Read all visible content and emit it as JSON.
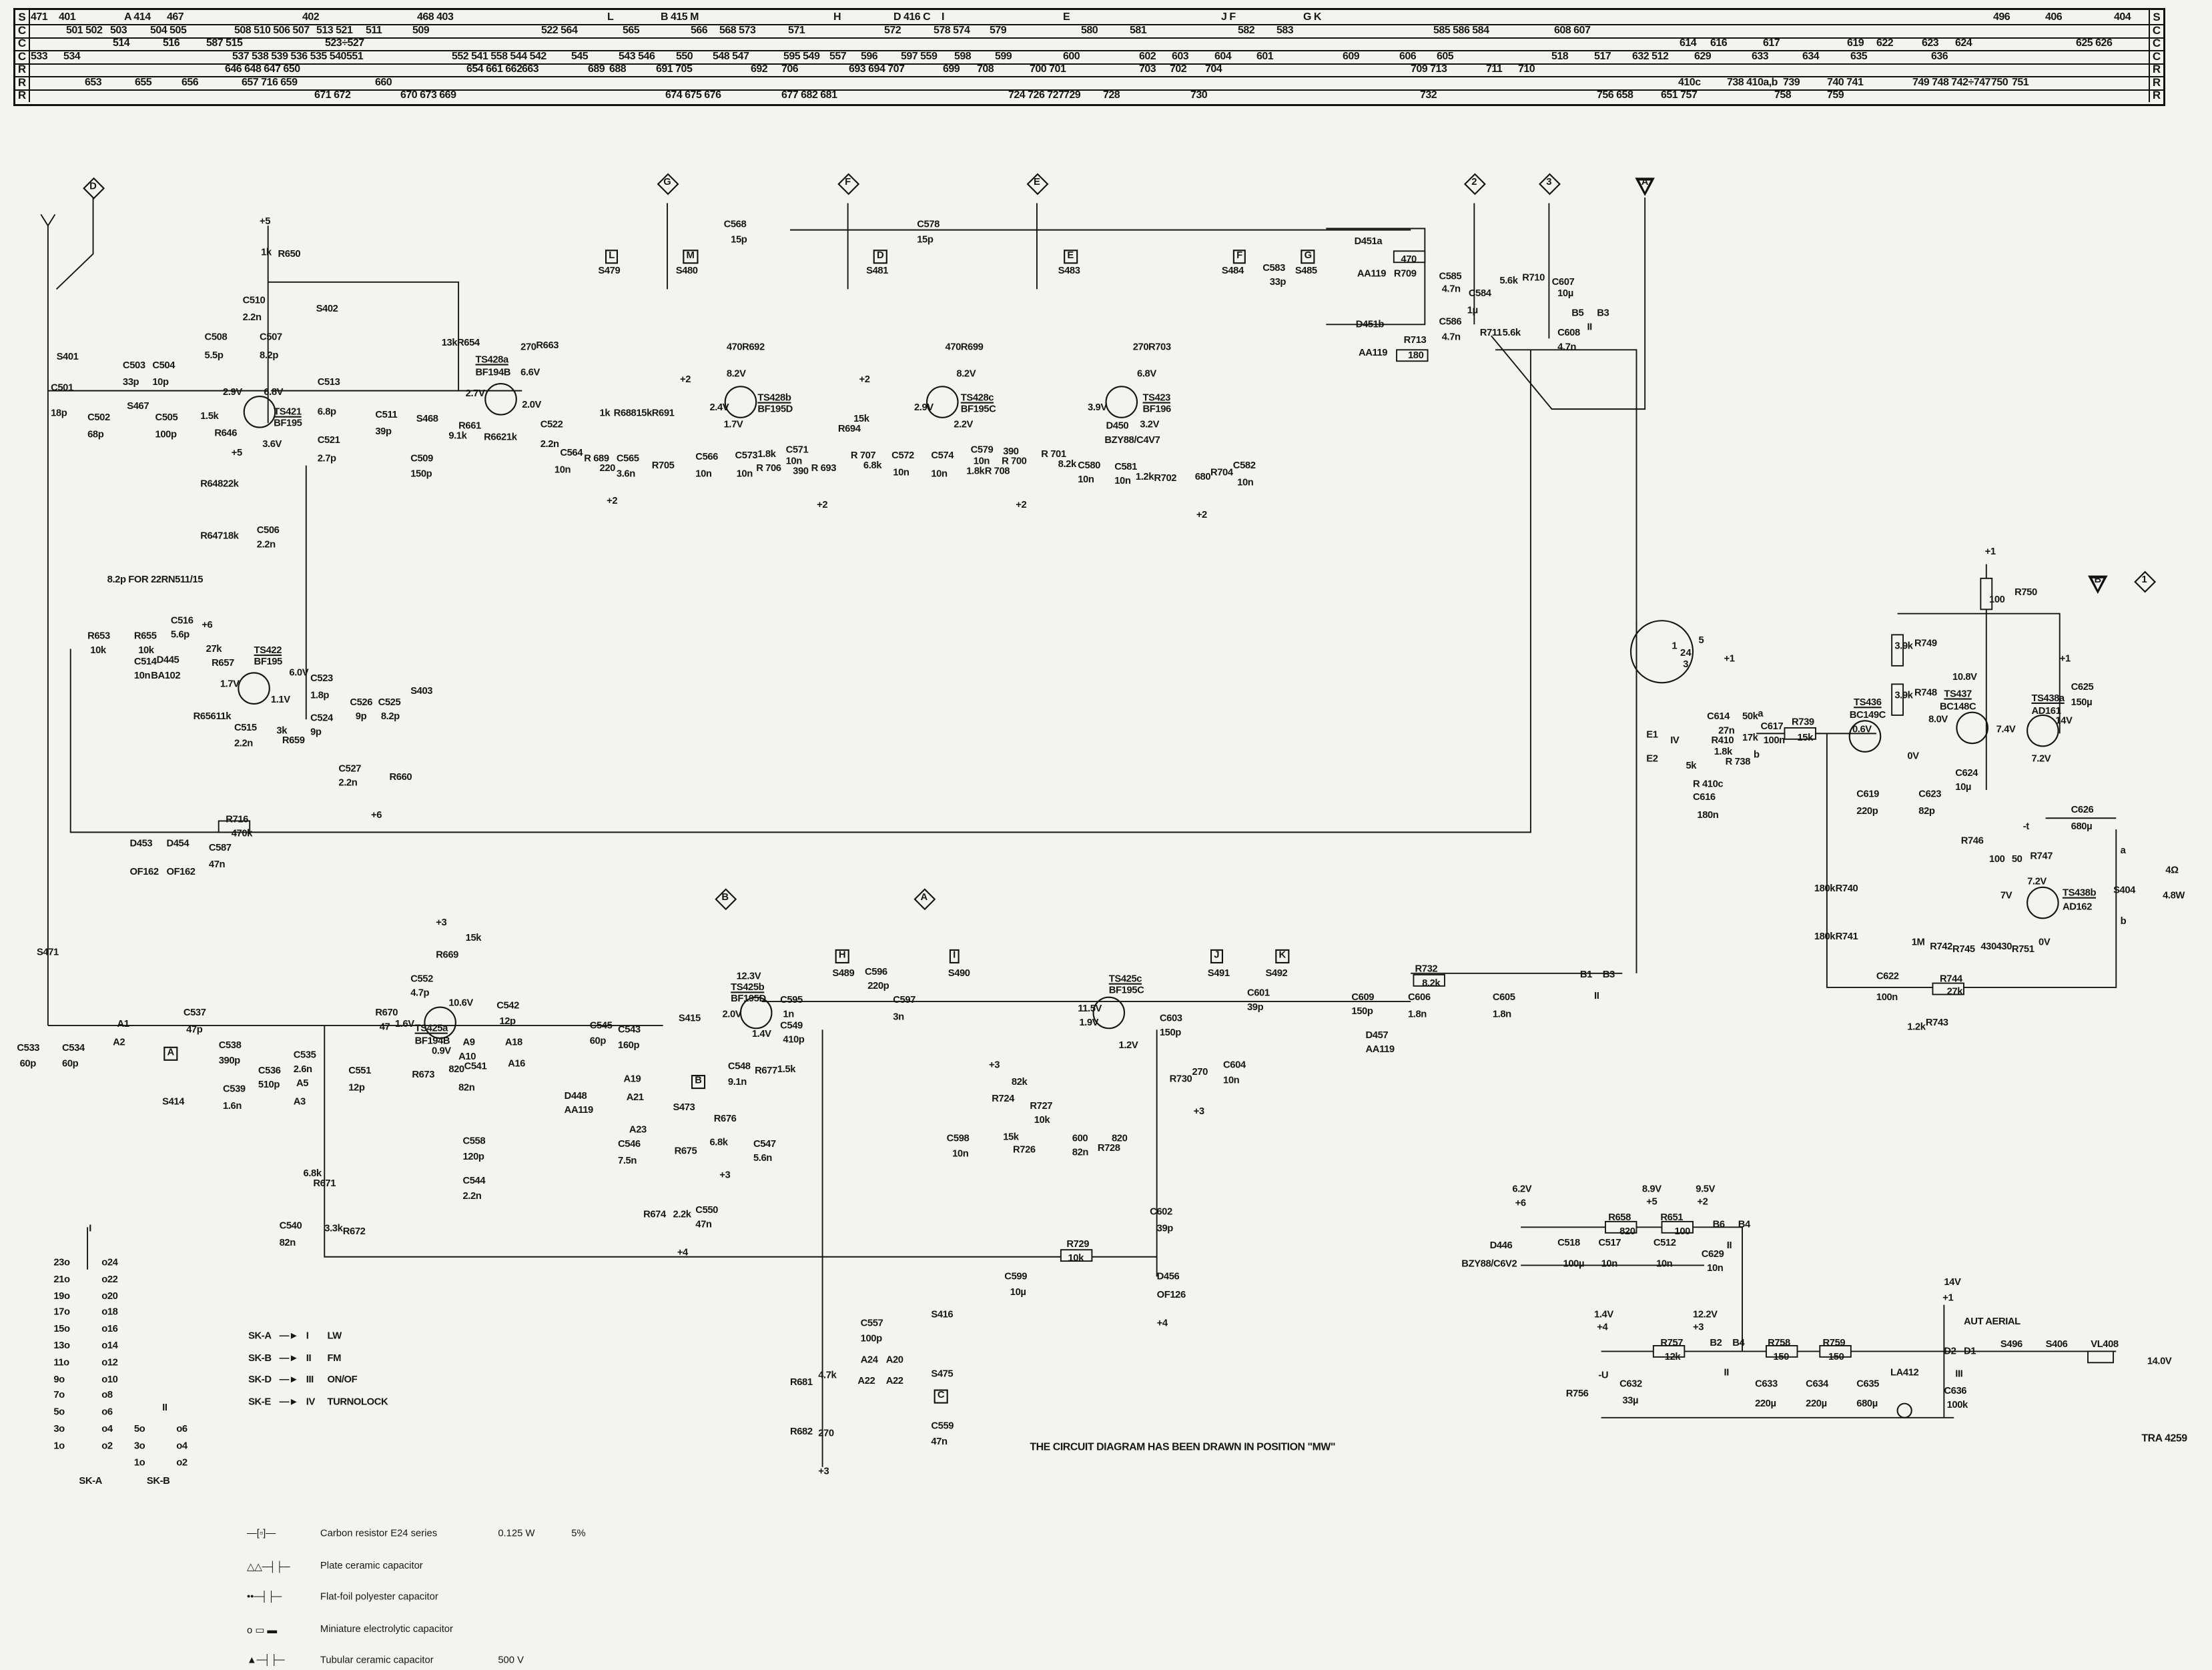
{
  "parts_table": {
    "rows": [
      {
        "type": "S",
        "entries": [
          "471",
          "401",
          "A 414",
          "467",
          "402",
          "468 403",
          "L",
          "B 415 M",
          "H",
          "D 416 C",
          "I",
          "E",
          "J F",
          "G K",
          "496",
          "406",
          "404"
        ]
      },
      {
        "type": "C",
        "entries": [
          "501 502",
          "503",
          "504 505",
          "508 510 506 507",
          "513 521",
          "511",
          "509",
          "522 564",
          "565",
          "566",
          "568 573",
          "571",
          "572",
          "578 574",
          "579",
          "580",
          "581",
          "582",
          "583",
          "585 586 584",
          "608 607"
        ]
      },
      {
        "type": "C",
        "entries": [
          "514",
          "516",
          "587 515",
          "523÷527",
          "614",
          "616",
          "617",
          "619",
          "622",
          "623",
          "624",
          "625 626"
        ]
      },
      {
        "type": "C",
        "entries": [
          "533",
          "534",
          "537 538 539 536 535 540",
          "551",
          "552 541 558 544 542",
          "545",
          "543 546",
          "550",
          "548 547",
          "595 549",
          "557",
          "596",
          "597 559",
          "598",
          "599",
          "600",
          "602",
          "603",
          "604",
          "601",
          "609",
          "606",
          "605",
          "518",
          "517",
          "632 512",
          "629",
          "633",
          "634",
          "635",
          "636"
        ]
      },
      {
        "type": "R",
        "entries": [
          "646 648 647 650",
          "654 661 662",
          "663",
          "689",
          "688",
          "691 705",
          "692",
          "706",
          "693 694 707",
          "699",
          "708",
          "700 701",
          "703",
          "702",
          "704",
          "709 713",
          "711",
          "710"
        ]
      },
      {
        "type": "R",
        "entries": [
          "653",
          "655",
          "656",
          "657 716 659",
          "660",
          "410c",
          "738 410a,b",
          "739",
          "740 741",
          "749 748 742÷747",
          "750",
          "751"
        ]
      },
      {
        "type": "R",
        "entries": [
          "671 672",
          "670 673 669",
          "674 675 676",
          "677 682 681",
          "724 726 727",
          "729",
          "728",
          "730",
          "732",
          "756 658",
          "651 757",
          "758",
          "759"
        ]
      }
    ]
  },
  "flags": {
    "D": "D",
    "G": "G",
    "F": "F",
    "E": "E",
    "n2": "2",
    "n3": "3",
    "A": "A",
    "B": "B",
    "n1": "1",
    "B2": "B",
    "A2": "A"
  },
  "boxes": {
    "L": "L",
    "M": "M",
    "D": "D",
    "E": "E",
    "F": "F",
    "G": "G",
    "H": "H",
    "I": "I",
    "J": "J",
    "K": "K",
    "A": "A",
    "B": "B",
    "C": "C"
  },
  "labels": {
    "p5a": "+5",
    "r650": "R650",
    "r650v": "1k",
    "c510": "C510",
    "c510v": "2.2n",
    "s402": "S402",
    "c508": "C508",
    "c508v": "5.5p",
    "c507": "C507",
    "c507v": "8.2p",
    "s401": "S401",
    "c503": "C503",
    "c503v": "33p",
    "c504": "C504",
    "c504v": "10p",
    "c501": "C501",
    "c501v": "18p",
    "c502": "C502",
    "c502v": "68p",
    "s467": "S467",
    "c505": "C505",
    "c505v": "100p",
    "r646": "R646",
    "r646v": "1.5k",
    "ts421": "TS421",
    "ts421t": "BF195",
    "v29": "2.9V",
    "v68": "6.8V",
    "v36": "3.6V",
    "p5b": "+5",
    "r648": "R648",
    "r648v": "22k",
    "r647": "R647",
    "r647v": "18k",
    "c506": "C506",
    "c506v": "2.2n",
    "c513": "C513",
    "c513v": "6.8p",
    "c521": "C521",
    "c521v": "2.7p",
    "c511": "C511",
    "c511v": "39p",
    "s468": "S468",
    "c509": "C509",
    "c509v": "150p",
    "r654": "R654",
    "r654v": "13k",
    "r661": "R661",
    "r661v": "9.1k",
    "r663": "R663",
    "r663v": "270",
    "ts428a": "TS428a",
    "ts428at": "BF194B",
    "v27": "2.7V",
    "v66": "6.6V",
    "v20": "2.0V",
    "r662": "R662",
    "r662v": "1k",
    "c522": "C522",
    "c522v": "2.2n",
    "s479": "S479",
    "s480": "S480",
    "r688": "R688",
    "r688v": "1k",
    "r689": "R 689",
    "r689v": "220",
    "c564": "C564",
    "c564v": "10n",
    "c565": "C565",
    "c565v": "3.6n",
    "r705": "R705",
    "r691": "R691",
    "r691v": "15k",
    "c566": "C566",
    "c566v": "10n",
    "c568": "C568",
    "c568v": "15p",
    "ts428b": "TS428b",
    "ts428bt": "BF195D",
    "r692": "R692",
    "r692v": "470",
    "v82a": "8.2V",
    "v24": "2.4V",
    "v17": "1.7V",
    "c573": "C573",
    "c573v": "10n",
    "r706": "R 706",
    "r706v": "1.8k",
    "c571": "C571",
    "c571v": "10n",
    "r693": "R 693",
    "r693v": "390",
    "s481": "S481",
    "r694": "R694",
    "r694v": "15k",
    "r707": "R 707",
    "r707v": "6.8k",
    "c572": "C572",
    "c572v": "10n",
    "c578": "C578",
    "c578v": "15p",
    "ts428c": "TS428c",
    "ts428ct": "BF195C",
    "r699": "R699",
    "r699v": "470",
    "v82b": "8.2V",
    "v29b": "2.9V",
    "v22": "2.2V",
    "c574": "C574",
    "c574v": "10n",
    "c579": "C579",
    "c579v": "10n",
    "r708": "R 708",
    "r708v": "1.8k",
    "r700": "R 700",
    "r700v": "390",
    "s483": "S483",
    "r701": "R 701",
    "r701v": "8.2k",
    "c580": "C580",
    "c580v": "10n",
    "ts423": "TS423",
    "ts423t": "BF196",
    "r703": "R703",
    "r703v": "270",
    "v68b": "6.8V",
    "v39": "3.9V",
    "v32": "3.2V",
    "d450": "D450",
    "d450t": "BZY88/C4V7",
    "c581": "C581",
    "c581v": "10n",
    "r702": "R702",
    "r702v": "1.2k",
    "r704": "R704",
    "r704v": "680",
    "c582": "C582",
    "c582v": "10n",
    "s484": "S484",
    "c583": "C583",
    "c583v": "33p",
    "s485": "S485",
    "d451a": "D451a",
    "d451at": "AA119",
    "r709": "R709",
    "r709v": "470",
    "c585": "C585",
    "c585v": "4.7n",
    "c584": "C584",
    "c584v": "1µ",
    "r710": "R710",
    "r710v": "5.6k",
    "c586": "C586",
    "c586v": "4.7n",
    "r711": "R711",
    "r711v": "5.6k",
    "d451b": "D451b",
    "d451bt": "AA119",
    "r713": "R713",
    "r713v": "180",
    "c607": "C607",
    "c607v": "10µ",
    "c608": "C608",
    "c608v": "4.7n",
    "b5": "B5",
    "b3": "B3",
    "sw2a": "II",
    "note82": "8.2p FOR 22RN511/15",
    "r653": "R653",
    "r653v": "10k",
    "r655": "R655",
    "r655v": "10k",
    "c516": "C516",
    "c516v": "5.6p",
    "p6a": "+6",
    "c514": "C514",
    "c514v": "10n",
    "d445": "D445",
    "d445t": "BA102",
    "r657": "R657",
    "r657v": "27k",
    "ts422": "TS422",
    "ts422t": "BF195",
    "v17b": "1.7V",
    "v60": "6.0V",
    "v11": "1.1V",
    "c523": "C523",
    "c523v": "1.8p",
    "c524": "C524",
    "c524v": "9p",
    "c526": "C526",
    "c526v": "9p",
    "c525": "C525",
    "c525v": "8.2p",
    "s403": "S403",
    "r656": "R656",
    "r656v": "11k",
    "c515": "C515",
    "c515v": "2.2n",
    "r659": "R659",
    "r659v": "3k",
    "c527": "C527",
    "c527v": "2.2n",
    "r660": "R660",
    "p6b": "+6",
    "r716": "R716",
    "r716v": "470k",
    "d453": "D453",
    "d453t": "OF162",
    "d454": "D454",
    "d454t": "OF162",
    "c587": "C587",
    "c587v": "47n",
    "s471": "S471",
    "c533": "C533",
    "c533v": "60p",
    "c534": "C534",
    "c534v": "60p",
    "a1": "A1",
    "a2": "A2",
    "s414": "S414",
    "c537": "C537",
    "c537v": "47p",
    "c538": "C538",
    "c538v": "390p",
    "c539": "C539",
    "c539v": "1.6n",
    "c536": "C536",
    "c536v": "510p",
    "c535": "C535",
    "c535v": "2.6n",
    "a5": "A5",
    "a3": "A3",
    "c551": "C551",
    "c551v": "12p",
    "r670": "R670",
    "r670v": "47",
    "ts425a": "TS425a",
    "ts425at": "BF194B",
    "v16": "1.6V",
    "v106": "10.6V",
    "v09": "0.9V",
    "r669": "R669",
    "r669v": "15k",
    "p3a": "+3",
    "c552": "C552",
    "c552v": "4.7p",
    "r673": "R673",
    "r673v": "820",
    "c541": "C541",
    "c541v": "82n",
    "c542": "C542",
    "c542v": "12p",
    "a9": "A9",
    "a10": "A10",
    "a16": "A16",
    "a18": "A18",
    "c545": "C545",
    "c545v": "60p",
    "c543": "C543",
    "c543v": "160p",
    "s415": "S415",
    "d448": "D448",
    "d448t": "AA119",
    "a19": "A19",
    "a21": "A21",
    "a23": "A23",
    "s473": "S473",
    "c558": "C558",
    "c558v": "120p",
    "c544": "C544",
    "c544v": "2.2n",
    "c546": "C546",
    "c546v": "7.5n",
    "r675": "R675",
    "r676": "R676",
    "r676v": "6.8k",
    "c547": "C547",
    "c547v": "5.6n",
    "r674": "R674",
    "r674v": "2.2k",
    "c550": "C550",
    "c550v": "47n",
    "p4a": "+4",
    "p3b": "+3",
    "r671": "R671",
    "r671v": "6.8k",
    "r672": "R672",
    "r672v": "3.3k",
    "c540": "C540",
    "c540v": "82n",
    "ts425b": "TS425b",
    "ts425bt": "BF195D",
    "v123": "12.3V",
    "v20b": "2.0V",
    "v14": "1.4V",
    "c548": "C548",
    "c548v": "9.1n",
    "r677": "R677",
    "r677v": "1.5k",
    "c595": "C595",
    "c595v": "1n",
    "c549": "C549",
    "c549v": "410p",
    "s489": "S489",
    "c596": "C596",
    "c596v": "220p",
    "c597": "C597",
    "c597v": "3n",
    "s490": "S490",
    "ts425c": "TS425c",
    "ts425ct": "BF195C",
    "v115": "11.5V",
    "v19": "1.9V",
    "v12": "1.2V",
    "p3c": "+3",
    "r724": "R724",
    "r724v": "82k",
    "c598": "C598",
    "c598v": "10n",
    "r727": "R727",
    "r727v": "10k",
    "r726": "R726",
    "r726v": "15k",
    "c600": "600",
    "c600v": "82n",
    "r728": "R728",
    "r728v": "820",
    "c602": "C602",
    "c602v": "39p",
    "r729": "R729",
    "r729v": "10k",
    "c599": "C599",
    "c599v": "10µ",
    "d456": "D456",
    "d456t": "OF126",
    "p4b": "+4",
    "s491": "S491",
    "c603": "C603",
    "c603v": "150p",
    "c601": "C601",
    "c601v": "39p",
    "r730": "R730",
    "r730v": "270",
    "c604": "C604",
    "c604v": "10n",
    "p3d": "+3",
    "s492": "S492",
    "c609": "C609",
    "c609v": "150p",
    "d457": "D457",
    "d457t": "AA119",
    "r732": "R732",
    "r732v": "8.2k",
    "c606": "C606",
    "c606v": "1.8n",
    "c605": "C605",
    "c605v": "1.8n",
    "b1": "B1",
    "b3b": "B3",
    "sw2b": "II",
    "c557": "C557",
    "c557v": "100p",
    "a24": "A24",
    "a20": "A20",
    "a22": "A22",
    "a22b": "A22",
    "s416": "S416",
    "s475": "S475",
    "r681": "R681",
    "r681v": "4.7k",
    "r682": "R682",
    "r682v": "270",
    "c559": "C559",
    "c559v": "47n",
    "p3e": "+3",
    "p1a": "+1",
    "r750": "R750",
    "r750v": "100",
    "r749": "R749",
    "r749v": "3.9k",
    "r748": "R748",
    "r748v": "3.9k",
    "ts436": "TS436",
    "ts436t": "BC149C",
    "ts437": "TS437",
    "ts437t": "BC148C",
    "ts438a": "TS438a",
    "ts438at": "AD161",
    "v108": "10.8V",
    "v80": "8.0V",
    "v06": "0.6V",
    "v0a": "0V",
    "v74": "7.4V",
    "v14a": "14V",
    "v72a": "7.2V",
    "p1b": "+1",
    "c625": "C625",
    "c625v": "150µ",
    "c624": "C624",
    "c624v": "10µ",
    "c619": "C619",
    "c619v": "220p",
    "c623": "C623",
    "c623v": "82p",
    "c626": "C626",
    "c626v": "680µ",
    "r746": "R746",
    "r746v": "100",
    "r747": "R747",
    "r747v": "50",
    "r747t": "-t",
    "v72b": "7.2V",
    "v7": "7V",
    "ts438b": "TS438b",
    "ts438bt": "AD162",
    "v0b": "0V",
    "r740": "R740",
    "r740v": "180k",
    "r741": "R741",
    "r741v": "180k",
    "r742": "R742",
    "r742v": "1M",
    "r745": "R745",
    "r745v": "430",
    "r751": "R751",
    "r751v": "430",
    "c622": "C622",
    "c622v": "100n",
    "r744": "R744",
    "r744v": "27k",
    "r743": "R743",
    "r743v": "1.2k",
    "s404": "S404",
    "s404a": "a",
    "s404b": "b",
    "spk": "4Ω",
    "spkw": "4.8W",
    "din1": "1",
    "din2": "2",
    "din3": "3",
    "din4": "4",
    "din5": "5",
    "p1c": "+1",
    "e1": "E1",
    "e2": "E2",
    "sw4": "IV",
    "c614": "C614",
    "c614v": "27n",
    "r410": "R410",
    "r410v": "50k",
    "r410v2": "17k",
    "r410a": "a",
    "r410b": "b",
    "c617": "C617",
    "c617v": "100n",
    "r739": "R739",
    "r739v": "15k",
    "r738": "R 738",
    "r738v": "1.8k",
    "r410c": "R 410c",
    "r410cv": "5k",
    "c616": "C616",
    "c616v": "180n",
    "v62": "6.2V",
    "p6c": "+6",
    "d446": "D446",
    "d446t": "BZY88/C6V2",
    "c518": "C518",
    "c518v": "100µ",
    "c517": "C517",
    "c517v": "10n",
    "r658": "R658",
    "r658v": "820",
    "v89": "8.9V",
    "p5c": "+5",
    "r651": "R651",
    "r651v": "100",
    "v95": "9.5V",
    "p2a": "+2",
    "b6": "B6",
    "b4a": "B4",
    "sw2c": "II",
    "c512": "C512",
    "c512v": "10n",
    "c629": "C629",
    "c629v": "10n",
    "v14b": "1.4V",
    "p4c": "+4",
    "v122": "12.2V",
    "p3f": "+3",
    "r757": "R757",
    "r757v": "12k",
    "b2": "B2",
    "b4b": "B4",
    "sw2d": "II",
    "r758": "R758",
    "r758v": "150",
    "r759": "R759",
    "r759v": "150",
    "r756": "R756",
    "r756t": "-U",
    "c632": "C632",
    "c632v": "33µ",
    "c633": "C633",
    "c633v": "220µ",
    "c634": "C634",
    "c634v": "220µ",
    "c635": "C635",
    "c635v": "680µ",
    "la412": "LA412",
    "c636": "C636",
    "c636v": "100k",
    "v14c": "14V",
    "p1d": "+1",
    "aut": "AUT AERIAL",
    "d2": "D2",
    "d1": "D1",
    "sw3": "III",
    "s496": "S496",
    "s406": "S406",
    "vl408": "VL408",
    "v140": "14.0V",
    "note": "THE CIRCUIT DIAGRAM HAS BEEN DRAWN IN POSITION \"MW\"",
    "tra": "TRA 4259",
    "p2b": "+2",
    "p2c": "+2",
    "p2d": "+2",
    "p2e": "+2",
    "p2f": "+2",
    "p2g": "+2"
  },
  "switch_key": {
    "sk_a_title": "SK-A",
    "sk_b_title": "SK-B",
    "sk_arrow": "II",
    "sk_top": "I",
    "sk_a_pins": [
      "23o",
      "o24",
      "21o",
      "o22",
      "19o",
      "o20",
      "17o",
      "o18",
      "15o",
      "o16",
      "13o",
      "o14",
      "11o",
      "o12",
      "9o",
      "o10",
      "7o",
      "o8",
      "5o",
      "o6",
      "3o",
      "o4",
      "1o",
      "o2"
    ],
    "sk_b_pins": [
      "5o",
      "o6",
      "3o",
      "o4",
      "1o",
      "o2"
    ],
    "mapping": [
      {
        "sk": "SK-A",
        "pos": "I",
        "name": "LW"
      },
      {
        "sk": "SK-B",
        "pos": "II",
        "name": "FM"
      },
      {
        "sk": "SK-D",
        "pos": "III",
        "name": "ON/OF"
      },
      {
        "sk": "SK-E",
        "pos": "IV",
        "name": "TURNOLOCK"
      }
    ]
  },
  "legend": [
    {
      "text": "Carbon resistor E24 series",
      "v1": "0.125 W",
      "v2": "5%",
      "icon": "resistor-icon"
    },
    {
      "text": "Plate ceramic capacitor",
      "icon": "plate-ceramic-capacitor-icon"
    },
    {
      "text": "Flat-foil polyester capacitor",
      "icon": "polyester-capacitor-icon"
    },
    {
      "text": "Miniature electrolytic capacitor",
      "icon": "electrolytic-capacitor-icon"
    },
    {
      "text": "Tubular ceramic capacitor",
      "v1": "500 V",
      "icon": "tubular-ceramic-capacitor-icon"
    }
  ]
}
